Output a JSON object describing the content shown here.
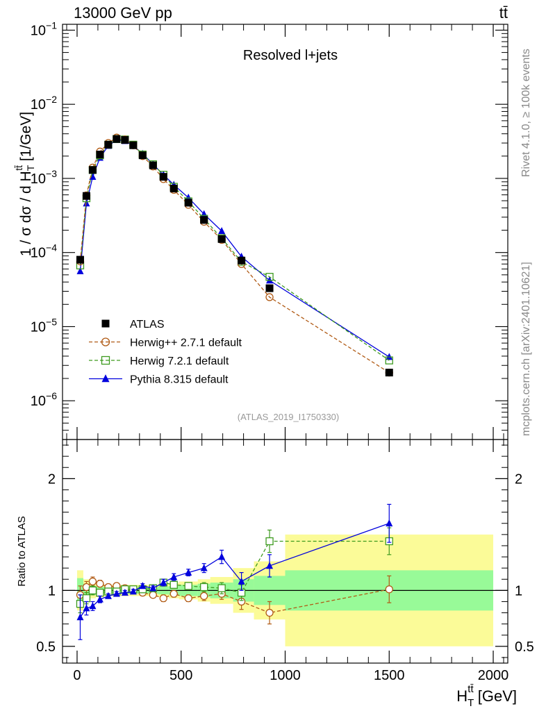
{
  "header": {
    "left_label": "13000 GeV pp",
    "right_label": "tt̄"
  },
  "side_labels": {
    "rivet": "Rivet 4.1.0, ≥ 100k events",
    "source": "mcplots.cern.ch [arXiv:2401.10621]"
  },
  "colors": {
    "atlas": "#000000",
    "herwigpp": "#b05a14",
    "herwig7": "#3d9a1f",
    "pythia": "#0000dd",
    "band_inner": "#98fa98",
    "band_outer": "#fbfb98"
  },
  "chart_data": [
    {
      "type": "scatter",
      "panel": "main",
      "title": "Resolved l+jets",
      "watermark": "(ATLAS_2019_I1750330)",
      "ylabel": "1 / σ dσ / d H_T^{tt̄} [1/GeV]",
      "yscale": "log",
      "ylim": [
        3e-07,
        0.12
      ],
      "xlim": [
        -70,
        2070
      ],
      "y_ticks": [
        {
          "value": 1e-06,
          "exp": "−6"
        },
        {
          "value": 1e-05,
          "exp": "−5"
        },
        {
          "value": 0.0001,
          "exp": "−4"
        },
        {
          "value": 0.001,
          "exp": "−3"
        },
        {
          "value": 0.01,
          "exp": "−2"
        },
        {
          "value": 0.1,
          "exp": "−1"
        }
      ],
      "y_tick_base": "10",
      "legend_position": "lower-left",
      "x": [
        15,
        45,
        75,
        110,
        150,
        190,
        230,
        270,
        315,
        365,
        415,
        465,
        535,
        610,
        695,
        790,
        925,
        1500
      ],
      "series": [
        {
          "name": "ATLAS",
          "key": "atlas",
          "marker": "square-filled",
          "line": "none",
          "values": [
            8e-05,
            0.00058,
            0.0013,
            0.0021,
            0.00285,
            0.0034,
            0.0033,
            0.0028,
            0.00205,
            0.0015,
            0.00105,
            0.00073,
            0.00047,
            0.000275,
            0.000152,
            7.8e-05,
            3.3e-05,
            2.4e-06
          ]
        },
        {
          "name": "Herwig++ 2.7.1 default",
          "key": "herwigpp",
          "marker": "circle-open",
          "line": "dashed",
          "values": [
            7.6e-05,
            0.00059,
            0.0014,
            0.0023,
            0.003,
            0.00355,
            0.00335,
            0.0028,
            0.002,
            0.00145,
            0.00098,
            0.0007,
            0.00044,
            0.00026,
            0.000148,
            7e-05,
            2.5e-05,
            2.4e-06
          ]
        },
        {
          "name": "Herwig 7.2.1 default",
          "key": "herwig7",
          "marker": "square-open",
          "line": "dashed",
          "values": [
            6.7e-05,
            0.00054,
            0.0013,
            0.00205,
            0.00285,
            0.0034,
            0.00335,
            0.00285,
            0.0021,
            0.00155,
            0.00112,
            0.00077,
            0.00049,
            0.000285,
            0.000156,
            7.5e-05,
            4.7e-05,
            3.5e-06
          ]
        },
        {
          "name": "Pythia 8.315 default",
          "key": "pythia",
          "marker": "triangle-filled",
          "line": "solid",
          "values": [
            5.6e-05,
            0.00046,
            0.00105,
            0.0019,
            0.00275,
            0.0033,
            0.0032,
            0.00275,
            0.00215,
            0.00155,
            0.00112,
            0.00082,
            0.00055,
            0.00033,
            0.000195,
            8.8e-05,
            4.2e-05,
            3.9e-06
          ]
        }
      ]
    },
    {
      "type": "scatter",
      "panel": "ratio",
      "ylabel": "Ratio to ATLAS",
      "xlabel": "H_T^{tt̄} [GeV]",
      "ylim": [
        0.35,
        2.35
      ],
      "xlim": [
        -70,
        2070
      ],
      "y_ticks": [
        0.5,
        1,
        2
      ],
      "y_tick_labels": [
        "0.5",
        "1",
        "2"
      ],
      "x_ticks": [
        0,
        500,
        1000,
        1500,
        2000
      ],
      "x_tick_labels": [
        "0",
        "500",
        "1000",
        "1500",
        "2000"
      ],
      "reference_line": 1,
      "uncertainty_bins": {
        "edges": [
          0,
          30,
          60,
          90,
          130,
          170,
          210,
          250,
          290,
          340,
          390,
          440,
          490,
          580,
          640,
          750,
          850,
          1000,
          2000
        ],
        "inner": [
          0.11,
          0.06,
          0.04,
          0.035,
          0.03,
          0.03,
          0.03,
          0.03,
          0.03,
          0.03,
          0.035,
          0.04,
          0.05,
          0.06,
          0.07,
          0.1,
          0.13,
          0.18
        ],
        "outer": [
          0.18,
          0.1,
          0.07,
          0.06,
          0.05,
          0.05,
          0.05,
          0.05,
          0.05,
          0.05,
          0.06,
          0.07,
          0.08,
          0.1,
          0.12,
          0.2,
          0.26,
          0.5
        ]
      },
      "x": [
        15,
        45,
        75,
        110,
        150,
        190,
        230,
        270,
        315,
        365,
        415,
        465,
        535,
        610,
        695,
        790,
        925,
        1500
      ],
      "series": [
        {
          "name": "Herwig++ 2.7.1 default",
          "key": "herwigpp",
          "marker": "circle-open",
          "line": "dashed",
          "values": [
            0.96,
            1.03,
            1.08,
            1.06,
            1.03,
            1.04,
            1.02,
            1.0,
            0.98,
            0.96,
            0.93,
            0.97,
            0.93,
            0.95,
            0.97,
            0.9,
            0.8,
            1.01
          ],
          "errors": [
            0.08,
            0.05,
            0.04,
            0.03,
            0.02,
            0.02,
            0.02,
            0.02,
            0.02,
            0.02,
            0.03,
            0.03,
            0.03,
            0.04,
            0.05,
            0.07,
            0.1,
            0.12
          ]
        },
        {
          "name": "Herwig 7.2.1 default",
          "key": "herwig7",
          "marker": "square-open",
          "line": "dashed",
          "values": [
            0.88,
            0.93,
            1.0,
            0.98,
            0.99,
            0.99,
            1.01,
            1.01,
            1.01,
            1.02,
            1.07,
            1.05,
            1.04,
            1.03,
            1.02,
            0.98,
            1.44,
            1.44
          ],
          "errors": [
            0.08,
            0.05,
            0.04,
            0.03,
            0.02,
            0.02,
            0.02,
            0.02,
            0.02,
            0.02,
            0.03,
            0.03,
            0.03,
            0.04,
            0.05,
            0.07,
            0.1,
            0.12
          ]
        },
        {
          "name": "Pythia 8.315 default",
          "key": "pythia",
          "marker": "triangle-filled",
          "line": "solid",
          "values": [
            0.76,
            0.84,
            0.86,
            0.92,
            0.95,
            0.97,
            0.98,
            0.99,
            1.04,
            1.02,
            1.07,
            1.12,
            1.16,
            1.2,
            1.3,
            1.08,
            1.22,
            1.6
          ],
          "errors": [
            0.2,
            0.06,
            0.04,
            0.03,
            0.02,
            0.02,
            0.02,
            0.02,
            0.02,
            0.02,
            0.03,
            0.03,
            0.03,
            0.04,
            0.06,
            0.08,
            0.1,
            0.17
          ]
        }
      ]
    }
  ]
}
